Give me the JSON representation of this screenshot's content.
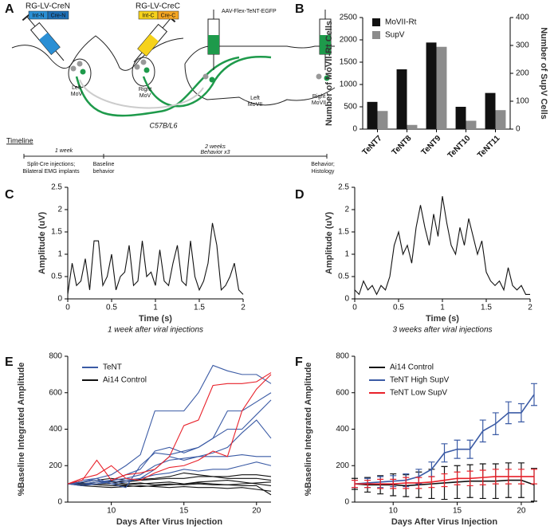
{
  "panel_labels": [
    "A",
    "B",
    "C",
    "D",
    "E",
    "F"
  ],
  "diagram": {
    "left_virus": "RG-LV-CreN",
    "left_parts": [
      "Int-N",
      "Cre-N"
    ],
    "right_virus": "RG-LV-CreC",
    "right_parts": [
      "Int-C",
      "Cre-C"
    ],
    "aav": "AAV-Flex-TeNT-EGFP",
    "regions": [
      [
        "Left",
        "MoV"
      ],
      [
        "Right",
        "MoV"
      ],
      [
        "Left",
        "MoVII"
      ],
      [
        "Right",
        "MoVII"
      ]
    ],
    "strain": "C57B/L6",
    "timeline": {
      "title": "Timeline",
      "period_1": "1 week",
      "period_2": [
        "2 weeks",
        "Behavior x3"
      ],
      "events": [
        [
          "Split-Cre injections;",
          "Bilateral EMG implants"
        ],
        [
          "Baseline",
          "behavior"
        ],
        [
          "Behavior;",
          "Histology"
        ]
      ]
    }
  },
  "chart_data": [
    {
      "type": "bar",
      "categories": [
        "TeNT7",
        "TeNT8",
        "TeNT9",
        "TeNT10",
        "TeNT11"
      ],
      "series": [
        {
          "name": "MoVII-Rt",
          "color": "#111111",
          "values": [
            610,
            1340,
            1940,
            500,
            810
          ]
        },
        {
          "name": "SupV",
          "color": "#8c8c8c",
          "axis": "y2",
          "values": [
            65,
            15,
            295,
            30,
            68
          ]
        }
      ],
      "ylabel": "Number of MoVII-Rt Cells",
      "y2label": "Number of SupV Cells",
      "ylim": [
        0,
        2500
      ],
      "yticks": [
        0,
        500,
        1000,
        1500,
        2000,
        2500
      ],
      "y2lim": [
        0,
        400
      ],
      "y2ticks": [
        0,
        100,
        200,
        300,
        400
      ]
    },
    {
      "type": "line",
      "ylabel": "Amplitude (uV)",
      "xlabel": "Time (s)",
      "caption": "1 week after viral injections",
      "x": [
        0,
        0.05,
        0.1,
        0.15,
        0.2,
        0.25,
        0.3,
        0.35,
        0.4,
        0.45,
        0.5,
        0.55,
        0.6,
        0.65,
        0.7,
        0.75,
        0.8,
        0.85,
        0.9,
        0.95,
        1,
        1.05,
        1.1,
        1.15,
        1.2,
        1.25,
        1.3,
        1.35,
        1.4,
        1.45,
        1.5,
        1.55,
        1.6,
        1.65,
        1.7,
        1.75,
        1.8,
        1.85,
        1.9,
        1.95,
        2
      ],
      "series": [
        {
          "color": "#111111",
          "values": [
            0.1,
            0.8,
            0.3,
            0.4,
            0.9,
            0.2,
            1.3,
            1.3,
            0.3,
            0.5,
            1.0,
            0.2,
            0.5,
            0.6,
            1.2,
            0.3,
            0.4,
            1.3,
            0.5,
            0.6,
            0.3,
            1.1,
            0.4,
            0.3,
            0.8,
            1.2,
            0.4,
            0.3,
            1.3,
            0.5,
            0.2,
            0.4,
            0.8,
            1.7,
            1.2,
            0.2,
            0.3,
            0.5,
            0.8,
            0.2,
            0.1
          ]
        }
      ],
      "xlim": [
        0,
        2
      ],
      "xticks": [
        0,
        0.5,
        1,
        1.5,
        2
      ],
      "ylim": [
        0,
        2.5
      ],
      "yticks": [
        0,
        0.5,
        1,
        1.5,
        2,
        2.5
      ]
    },
    {
      "type": "line",
      "ylabel": "Amplitude (uV)",
      "xlabel": "Time (s)",
      "caption": "3 weeks after viral injections",
      "x": [
        0,
        0.05,
        0.1,
        0.15,
        0.2,
        0.25,
        0.3,
        0.35,
        0.4,
        0.45,
        0.5,
        0.55,
        0.6,
        0.65,
        0.7,
        0.75,
        0.8,
        0.85,
        0.9,
        0.95,
        1,
        1.05,
        1.1,
        1.15,
        1.2,
        1.25,
        1.3,
        1.35,
        1.4,
        1.45,
        1.5,
        1.55,
        1.6,
        1.65,
        1.7,
        1.75,
        1.8,
        1.85,
        1.9,
        1.95,
        2
      ],
      "series": [
        {
          "color": "#111111",
          "values": [
            0.2,
            0.1,
            0.4,
            0.2,
            0.3,
            0.1,
            0.3,
            0.2,
            0.5,
            1.2,
            1.5,
            1.0,
            1.2,
            0.8,
            1.6,
            2.1,
            1.6,
            1.2,
            1.9,
            1.4,
            2.3,
            1.7,
            1.2,
            1.0,
            1.6,
            1.2,
            1.8,
            1.4,
            1.0,
            1.3,
            0.6,
            0.4,
            0.3,
            0.4,
            0.2,
            0.7,
            0.3,
            0.2,
            0.3,
            0.1,
            0.1
          ]
        }
      ],
      "xlim": [
        0,
        2
      ],
      "xticks": [
        0,
        0.5,
        1,
        1.5,
        2
      ],
      "ylim": [
        0,
        2.5
      ],
      "yticks": [
        0,
        0.5,
        1,
        1.5,
        2,
        2.5
      ]
    },
    {
      "type": "line",
      "ylabel": "%Baseline Integrated Amplitude",
      "xlabel": "Days After Virus Injection",
      "legend": [
        {
          "name": "TeNT",
          "color": "#3b5ba5"
        },
        {
          "name": "Ai14 Control",
          "color": "#111111"
        }
      ],
      "x": [
        7,
        8,
        9,
        10,
        11,
        12,
        13,
        14,
        15,
        16,
        17,
        18,
        19,
        20,
        21
      ],
      "series": [
        {
          "color": "#111111",
          "values": [
            100,
            100,
            110,
            115,
            110,
            120,
            125,
            130,
            130,
            140,
            140,
            140,
            150,
            150,
            140
          ]
        },
        {
          "color": "#111111",
          "values": [
            100,
            95,
            100,
            100,
            95,
            100,
            105,
            110,
            100,
            110,
            115,
            120,
            110,
            100,
            90
          ]
        },
        {
          "color": "#111111",
          "values": [
            100,
            110,
            120,
            130,
            120,
            125,
            130,
            140,
            160,
            150,
            140,
            130,
            130,
            130,
            120
          ]
        },
        {
          "color": "#111111",
          "values": [
            100,
            90,
            85,
            80,
            85,
            90,
            85,
            80,
            85,
            80,
            80,
            75,
            80,
            70,
            60
          ]
        },
        {
          "color": "#111111",
          "values": [
            100,
            105,
            100,
            110,
            100,
            105,
            95,
            100,
            95,
            100,
            95,
            95,
            90,
            90,
            40
          ]
        },
        {
          "color": "#111111",
          "values": [
            100,
            100,
            95,
            90,
            90,
            85,
            90,
            95,
            100,
            105,
            100,
            95,
            100,
            105,
            110
          ]
        },
        {
          "color": "#3b5ba5",
          "values": [
            100,
            110,
            130,
            150,
            200,
            260,
            500,
            500,
            500,
            600,
            750,
            720,
            700,
            700,
            650
          ]
        },
        {
          "color": "#3b5ba5",
          "values": [
            100,
            120,
            130,
            100,
            80,
            200,
            270,
            260,
            280,
            300,
            350,
            500,
            500,
            550,
            600
          ]
        },
        {
          "color": "#3b5ba5",
          "values": [
            100,
            100,
            110,
            120,
            130,
            150,
            200,
            230,
            240,
            250,
            250,
            250,
            260,
            250,
            250
          ]
        },
        {
          "color": "#3b5ba5",
          "values": [
            100,
            110,
            120,
            100,
            110,
            130,
            180,
            250,
            230,
            250,
            270,
            300,
            380,
            450,
            350
          ]
        },
        {
          "color": "#3b5ba5",
          "values": [
            100,
            90,
            100,
            110,
            120,
            130,
            150,
            160,
            180,
            170,
            180,
            180,
            200,
            220,
            200
          ]
        },
        {
          "color": "#3b5ba5",
          "values": [
            100,
            100,
            100,
            120,
            150,
            180,
            280,
            300,
            270,
            300,
            350,
            400,
            400,
            480,
            560
          ]
        },
        {
          "color": "#e8212a",
          "values": [
            100,
            120,
            230,
            120,
            150,
            160,
            180,
            250,
            420,
            450,
            640,
            650,
            650,
            660,
            710
          ]
        },
        {
          "color": "#e8212a",
          "values": [
            100,
            130,
            150,
            200,
            130,
            120,
            160,
            190,
            200,
            230,
            280,
            250,
            500,
            620,
            700
          ]
        }
      ],
      "xlim": [
        7,
        21
      ],
      "xticks": [
        10,
        15,
        20
      ],
      "ylim": [
        0,
        800
      ],
      "yticks": [
        0,
        200,
        400,
        600,
        800
      ]
    },
    {
      "type": "line",
      "ylabel": "%Baseline Integrated Amplitude",
      "xlabel": "Days After Virus Injection",
      "x": [
        7,
        8,
        9,
        10,
        11,
        12,
        13,
        14,
        15,
        16,
        17,
        18,
        19,
        20,
        21
      ],
      "series": [
        {
          "name": "Ai14 Control",
          "color": "#111111",
          "values": [
            100,
            95,
            95,
            95,
            90,
            95,
            100,
            105,
            110,
            115,
            115,
            115,
            120,
            120,
            95
          ],
          "errors": [
            30,
            40,
            50,
            60,
            60,
            70,
            80,
            90,
            90,
            90,
            95,
            95,
            95,
            95,
            90
          ]
        },
        {
          "name": "TeNT High SupV",
          "color": "#3b5ba5",
          "values": [
            100,
            105,
            110,
            115,
            120,
            140,
            180,
            270,
            290,
            290,
            390,
            430,
            490,
            490,
            590
          ],
          "errors": [
            20,
            25,
            30,
            30,
            35,
            40,
            40,
            50,
            50,
            50,
            60,
            60,
            60,
            50,
            60
          ]
        },
        {
          "name": "TeNT Low SupV",
          "color": "#e8212a",
          "values": [
            100,
            100,
            100,
            100,
            105,
            105,
            110,
            120,
            130,
            130,
            135,
            140,
            140,
            140,
            140
          ],
          "errors": [
            20,
            20,
            25,
            25,
            30,
            30,
            30,
            35,
            35,
            40,
            40,
            40,
            40,
            40,
            40
          ]
        }
      ],
      "xlim": [
        7,
        21
      ],
      "xticks": [
        10,
        15,
        20
      ],
      "ylim": [
        0,
        800
      ],
      "yticks": [
        0,
        200,
        400,
        600,
        800
      ]
    }
  ]
}
